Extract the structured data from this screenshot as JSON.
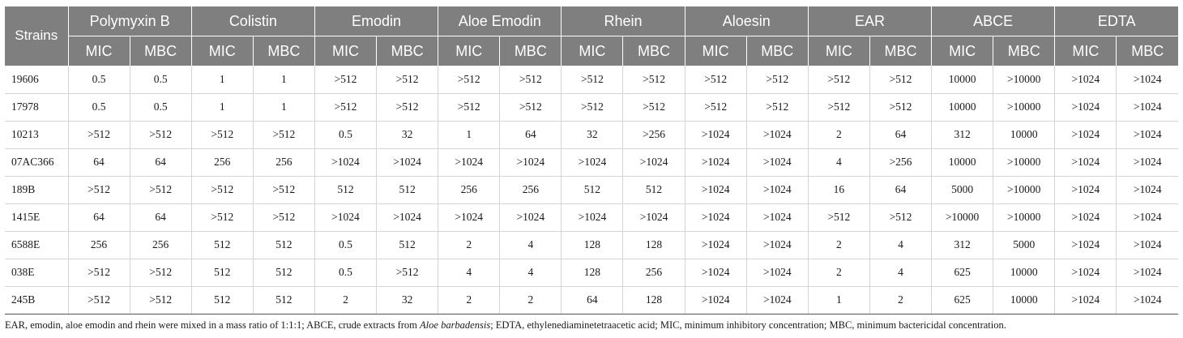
{
  "table": {
    "row_header": "Strains",
    "groups": [
      "Polymyxin B",
      "Colistin",
      "Emodin",
      "Aloe Emodin",
      "Rhein",
      "Aloesin",
      "EAR",
      "ABCE",
      "EDTA"
    ],
    "subheaders": [
      "MIC",
      "MBC"
    ],
    "rows": [
      {
        "strain": "19606",
        "values": [
          "0.5",
          "0.5",
          "1",
          "1",
          ">512",
          ">512",
          ">512",
          ">512",
          ">512",
          ">512",
          ">512",
          ">512",
          ">512",
          ">512",
          "10000",
          ">10000",
          ">1024",
          ">1024"
        ]
      },
      {
        "strain": "17978",
        "values": [
          "0.5",
          "0.5",
          "1",
          "1",
          ">512",
          ">512",
          ">512",
          ">512",
          ">512",
          ">512",
          ">512",
          ">512",
          ">512",
          ">512",
          "10000",
          ">10000",
          ">1024",
          ">1024"
        ]
      },
      {
        "strain": "10213",
        "values": [
          ">512",
          ">512",
          ">512",
          ">512",
          "0.5",
          "32",
          "1",
          "64",
          "32",
          ">256",
          ">1024",
          ">1024",
          "2",
          "64",
          "312",
          "10000",
          ">1024",
          ">1024"
        ]
      },
      {
        "strain": "07AC366",
        "values": [
          "64",
          "64",
          "256",
          "256",
          ">1024",
          ">1024",
          ">1024",
          ">1024",
          ">1024",
          ">1024",
          ">1024",
          ">1024",
          "4",
          ">256",
          "10000",
          ">10000",
          ">1024",
          ">1024"
        ]
      },
      {
        "strain": "189B",
        "values": [
          ">512",
          ">512",
          ">512",
          ">512",
          "512",
          "512",
          "256",
          "256",
          "512",
          "512",
          ">1024",
          ">1024",
          "16",
          "64",
          "5000",
          ">10000",
          ">1024",
          ">1024"
        ]
      },
      {
        "strain": "1415E",
        "values": [
          "64",
          "64",
          ">512",
          ">512",
          ">1024",
          ">1024",
          ">1024",
          ">1024",
          ">1024",
          ">1024",
          ">1024",
          ">1024",
          ">512",
          ">512",
          ">10000",
          ">10000",
          ">1024",
          ">1024"
        ]
      },
      {
        "strain": "6588E",
        "values": [
          "256",
          "256",
          "512",
          "512",
          "0.5",
          "512",
          "2",
          "4",
          "128",
          "128",
          ">1024",
          ">1024",
          "2",
          "4",
          "312",
          "5000",
          ">1024",
          ">1024"
        ]
      },
      {
        "strain": "038E",
        "values": [
          ">512",
          ">512",
          "512",
          "512",
          "0.5",
          ">512",
          "4",
          "4",
          "128",
          "256",
          ">1024",
          ">1024",
          "2",
          "4",
          "625",
          "10000",
          ">1024",
          ">1024"
        ]
      },
      {
        "strain": "245B",
        "values": [
          ">512",
          ">512",
          "512",
          "512",
          "2",
          "32",
          "2",
          "2",
          "64",
          "128",
          ">1024",
          ">1024",
          "1",
          "2",
          "625",
          "10000",
          ">1024",
          ">1024"
        ]
      }
    ]
  },
  "footnote": {
    "part1": "EAR, emodin, aloe emodin and rhein were mixed in a mass ratio of 1:1:1; ABCE, crude extracts from ",
    "italic": "Aloe barbadensis",
    "part2": "; EDTA, ethylenediaminetetraacetic acid; MIC, minimum inhibitory concentration; MBC, minimum bactericidal concentration."
  }
}
